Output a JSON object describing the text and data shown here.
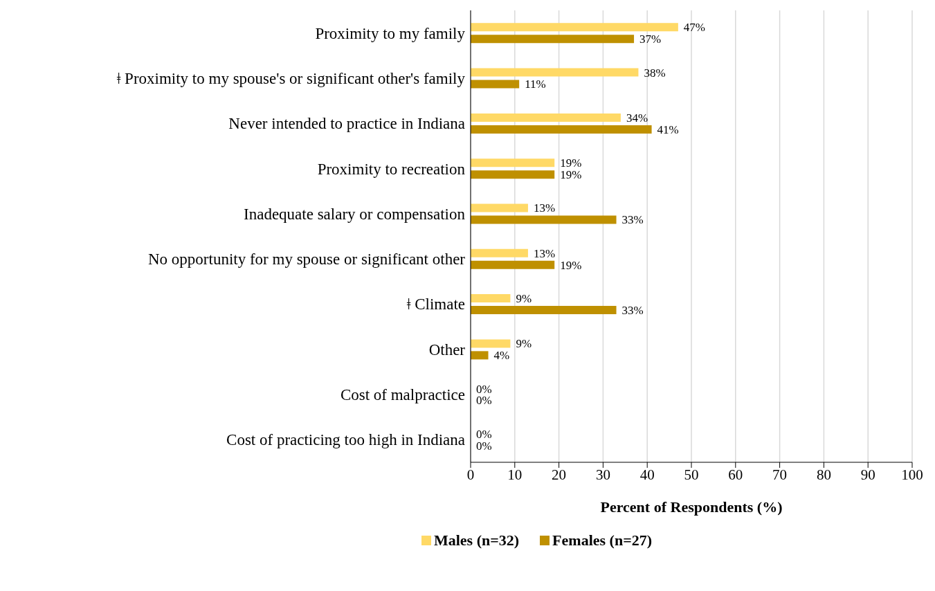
{
  "chart_data": {
    "type": "bar",
    "orientation": "horizontal",
    "xlabel": "Percent of Respondents (%)",
    "categories": [
      "Proximity to my family",
      "ǂ Proximity to my spouse's or significant other's family",
      "Never intended to practice in Indiana",
      "Proximity to recreation",
      "Inadequate salary or compensation",
      "No opportunity for my spouse or significant other",
      "ǂ Climate",
      "Other",
      "Cost of malpractice",
      "Cost of practicing too high in Indiana"
    ],
    "series": [
      {
        "name": "Males (n=32)",
        "color": "#ffd966",
        "values": [
          47,
          38,
          34,
          19,
          13,
          13,
          9,
          9,
          0,
          0
        ],
        "value_labels": [
          "47%",
          "38%",
          "34%",
          "19%",
          "13%",
          "13%",
          "9%",
          "9%",
          "0%",
          "0%"
        ]
      },
      {
        "name": "Females (n=27)",
        "color": "#bf9000",
        "values": [
          37,
          11,
          41,
          19,
          33,
          19,
          33,
          4,
          0,
          0
        ],
        "value_labels": [
          "37%",
          "11%",
          "41%",
          "19%",
          "33%",
          "19%",
          "33%",
          "4%",
          "0%",
          "0%"
        ]
      }
    ],
    "xlim": [
      0,
      100
    ],
    "xticks": [
      0,
      10,
      20,
      30,
      40,
      50,
      60,
      70,
      80,
      90,
      100
    ],
    "grid": "x",
    "legend": "bottom"
  }
}
